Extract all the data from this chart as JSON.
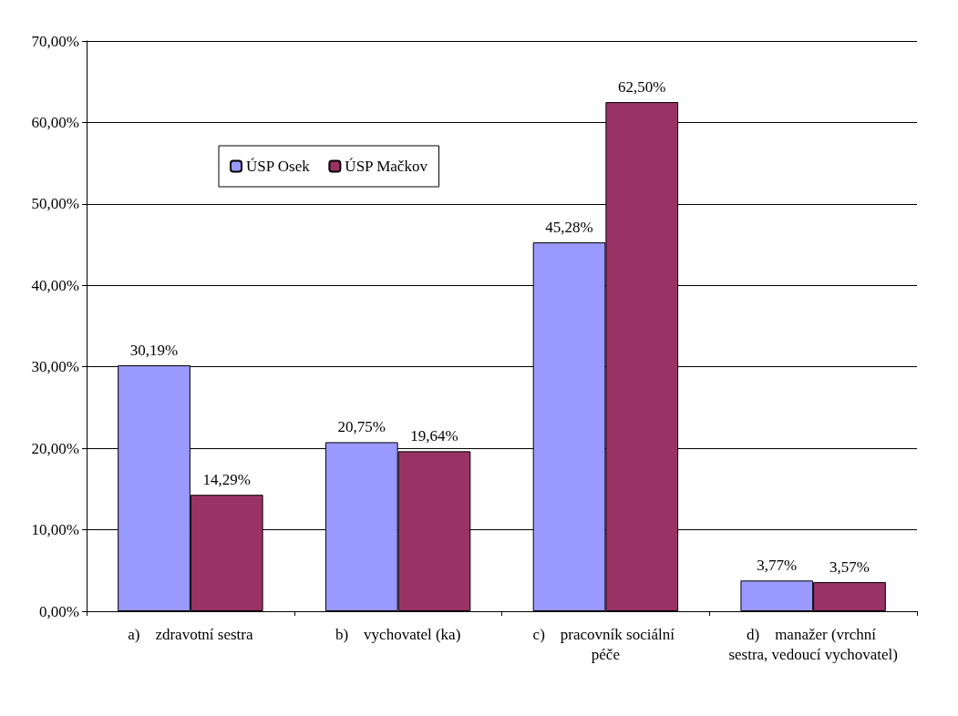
{
  "chart_data": {
    "type": "bar",
    "categories": [
      "a)    zdravotní sestra",
      "b)    vychovatel (ka)",
      "c)    pracovník sociální péče",
      "d)    manažer (vrchní sestra, vedoucí vychovatel)"
    ],
    "series": [
      {
        "name": "ÚSP Osek",
        "color": "#9999ff",
        "values": [
          30.19,
          20.75,
          45.28,
          3.77
        ],
        "value_labels": [
          "30,19%",
          "20,75%",
          "45,28%",
          "3,77%"
        ]
      },
      {
        "name": "ÚSP Mačkov",
        "color": "#993366",
        "values": [
          14.29,
          19.64,
          62.5,
          3.57
        ],
        "value_labels": [
          "14,29%",
          "19,64%",
          "62,50%",
          "3,57%"
        ]
      }
    ],
    "ylim": [
      0,
      70
    ],
    "yticks": [
      {
        "value": 0,
        "label": "0,00%"
      },
      {
        "value": 10,
        "label": "10,00%"
      },
      {
        "value": 20,
        "label": "20,00%"
      },
      {
        "value": 30,
        "label": "30,00%"
      },
      {
        "value": 40,
        "label": "40,00%"
      },
      {
        "value": 50,
        "label": "50,00%"
      },
      {
        "value": 60,
        "label": "60,00%"
      },
      {
        "value": 70,
        "label": "70,00%"
      }
    ],
    "grid": "y",
    "legend": "top left"
  }
}
